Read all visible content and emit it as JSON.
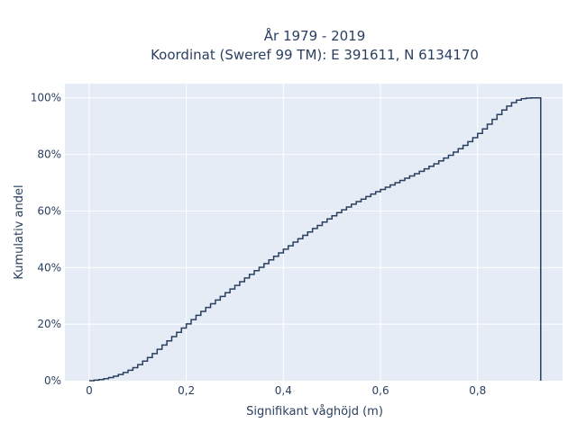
{
  "chart_data": {
    "type": "line",
    "line_shape": "step",
    "title_lines": [
      "År 1979 - 2019",
      "Koordinat (Sweref 99 TM): E 391611, N 6134170"
    ],
    "xlabel": "Signifikant våghöjd (m)",
    "ylabel": "Kumulativ andel",
    "xlim": [
      -0.05,
      0.975
    ],
    "ylim": [
      0,
      1.05
    ],
    "x_ticks": [
      0,
      0.2,
      0.4,
      0.6,
      0.8
    ],
    "x_tick_labels": [
      "0",
      "0,2",
      "0,4",
      "0,6",
      "0,8"
    ],
    "y_ticks": [
      0,
      0.2,
      0.4,
      0.6,
      0.8,
      1.0
    ],
    "y_tick_labels": [
      "0%",
      "20%",
      "40%",
      "60%",
      "80%",
      "100%"
    ],
    "grid": true,
    "colors": {
      "line": "#2a3f5f",
      "plot_bg": "#e5ecf6",
      "grid": "#ffffff"
    },
    "series": [
      {
        "x": [
          0.0,
          0.01,
          0.02,
          0.03,
          0.04,
          0.05,
          0.06,
          0.07,
          0.08,
          0.09,
          0.1,
          0.11,
          0.12,
          0.13,
          0.14,
          0.15,
          0.16,
          0.17,
          0.18,
          0.19,
          0.2,
          0.21,
          0.22,
          0.23,
          0.24,
          0.25,
          0.26,
          0.27,
          0.28,
          0.29,
          0.3,
          0.31,
          0.32,
          0.33,
          0.34,
          0.35,
          0.36,
          0.37,
          0.38,
          0.39,
          0.4,
          0.41,
          0.42,
          0.43,
          0.44,
          0.45,
          0.46,
          0.47,
          0.48,
          0.49,
          0.5,
          0.51,
          0.52,
          0.53,
          0.54,
          0.55,
          0.56,
          0.57,
          0.58,
          0.59,
          0.6,
          0.61,
          0.62,
          0.63,
          0.64,
          0.65,
          0.66,
          0.67,
          0.68,
          0.69,
          0.7,
          0.71,
          0.72,
          0.73,
          0.74,
          0.75,
          0.76,
          0.77,
          0.78,
          0.79,
          0.8,
          0.81,
          0.82,
          0.83,
          0.84,
          0.85,
          0.86,
          0.87,
          0.88,
          0.89,
          0.9,
          0.91,
          0.92,
          0.93
        ],
        "y": [
          0.0,
          0.002,
          0.004,
          0.007,
          0.011,
          0.016,
          0.022,
          0.029,
          0.037,
          0.046,
          0.057,
          0.069,
          0.082,
          0.096,
          0.111,
          0.126,
          0.141,
          0.156,
          0.171,
          0.186,
          0.201,
          0.216,
          0.231,
          0.245,
          0.259,
          0.272,
          0.285,
          0.298,
          0.311,
          0.324,
          0.337,
          0.35,
          0.363,
          0.376,
          0.389,
          0.401,
          0.414,
          0.427,
          0.44,
          0.452,
          0.465,
          0.477,
          0.49,
          0.502,
          0.514,
          0.526,
          0.538,
          0.549,
          0.561,
          0.572,
          0.583,
          0.594,
          0.604,
          0.614,
          0.624,
          0.633,
          0.642,
          0.651,
          0.66,
          0.668,
          0.676,
          0.684,
          0.692,
          0.7,
          0.708,
          0.716,
          0.724,
          0.732,
          0.74,
          0.749,
          0.758,
          0.767,
          0.777,
          0.787,
          0.797,
          0.808,
          0.82,
          0.832,
          0.845,
          0.859,
          0.874,
          0.89,
          0.907,
          0.924,
          0.941,
          0.957,
          0.971,
          0.983,
          0.992,
          0.997,
          0.999,
          1.0,
          1.0,
          0.0
        ]
      }
    ]
  }
}
